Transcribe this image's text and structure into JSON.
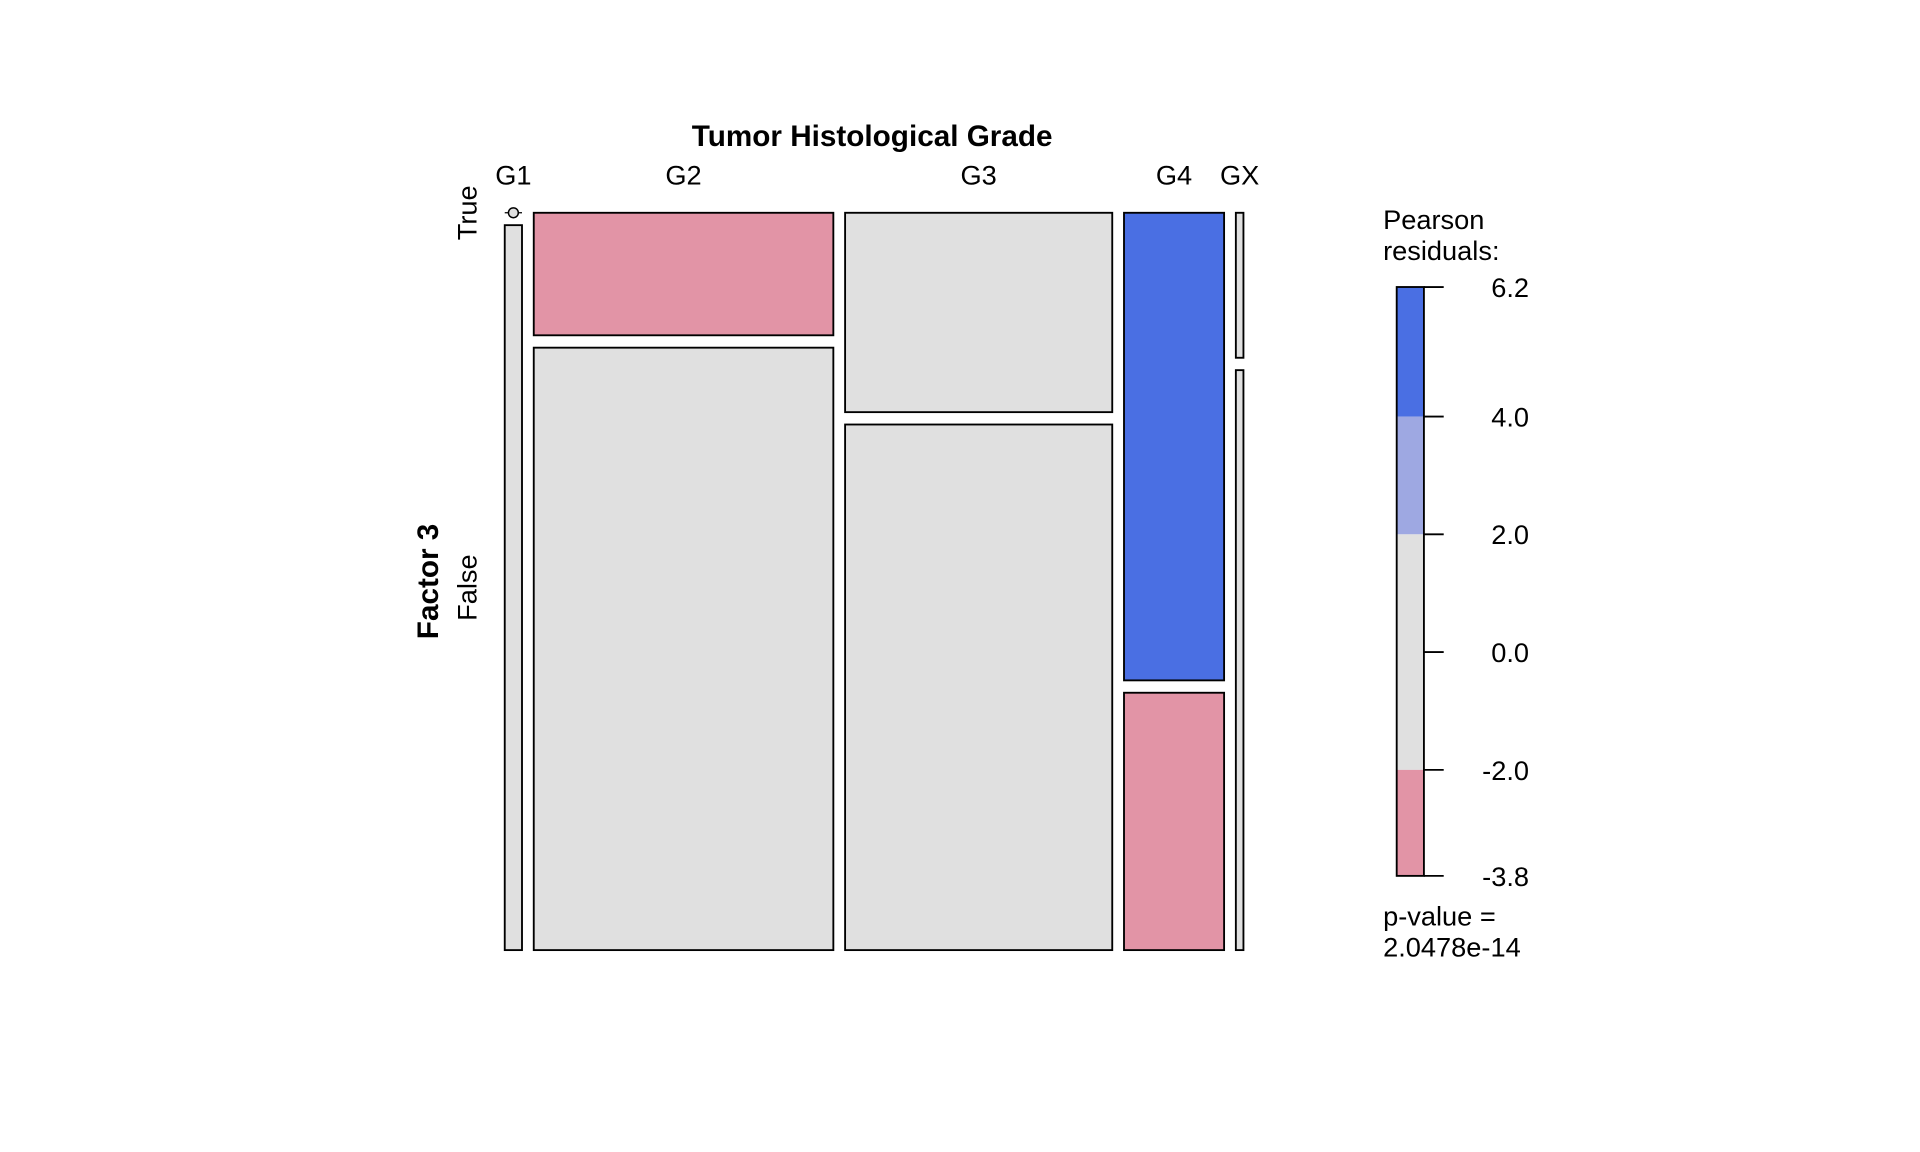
{
  "chart_data": {
    "type": "mosaic",
    "title": "Tumor Histological Grade",
    "xlabel": "Tumor Histological Grade",
    "ylabel": "Factor 3",
    "columns": [
      "G1",
      "G2",
      "G3",
      "G4",
      "GX"
    ],
    "rows": [
      "True",
      "False"
    ],
    "column_proportions": [
      0.025,
      0.434,
      0.387,
      0.145,
      0.011
    ],
    "true_proportion_within_column": [
      0.0,
      0.169,
      0.275,
      0.645,
      0.2
    ],
    "residual_class": [
      [
        "neutral",
        "neutral"
      ],
      [
        "low",
        "neutral"
      ],
      [
        "neutral",
        "neutral"
      ],
      [
        "high",
        "low"
      ],
      [
        "neutral",
        "neutral"
      ]
    ],
    "colors": {
      "high": "#4a6fe3",
      "mid_high": "#9ea8e2",
      "neutral": "#e0e0e0",
      "low": "#e294a6"
    },
    "legend": {
      "title_line1": "Pearson",
      "title_line2": "residuals:",
      "range": [
        -3.8,
        6.2
      ],
      "ticks": [
        "6.2",
        "4.0",
        "2.0",
        "0.0",
        "-2.0",
        "-3.8"
      ],
      "tick_values": [
        6.2,
        4.0,
        2.0,
        0.0,
        -2.0,
        -3.8
      ],
      "bands": [
        {
          "from": 4.0,
          "to": 6.2,
          "color": "#4a6fe3"
        },
        {
          "from": 2.0,
          "to": 4.0,
          "color": "#9ea8e2"
        },
        {
          "from": -2.0,
          "to": 2.0,
          "color": "#e0e0e0"
        },
        {
          "from": -3.8,
          "to": -2.0,
          "color": "#e294a6"
        }
      ],
      "pvalue_line1": "p-value =",
      "pvalue_line2": "2.0478e-14"
    }
  }
}
